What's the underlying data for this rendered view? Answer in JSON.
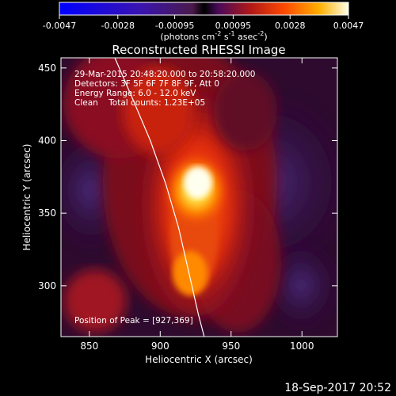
{
  "colorbar": {
    "ticks": [
      "-0.0047",
      "-0.0028",
      "-0.00095",
      "0.00095",
      "0.0028",
      "0.0047"
    ],
    "units_prefix": "(photons cm",
    "units_exp1": "-2",
    "units_mid": " s",
    "units_exp2": "-1",
    "units_mid2": " asec",
    "units_exp3": "-2",
    "units_suffix": ")",
    "range": [
      -0.0047,
      0.0047
    ]
  },
  "chart_data": {
    "type": "heatmap",
    "title": "Reconstructed RHESSI Image",
    "xlabel": "Heliocentric X (arcsec)",
    "ylabel": "Heliocentric Y (arcsec)",
    "xlim": [
      830,
      1025
    ],
    "ylim": [
      265,
      457
    ],
    "xticks": [
      850,
      900,
      950,
      1000
    ],
    "yticks": [
      300,
      350,
      400,
      450
    ],
    "annotations": [
      "29-Mar-2015 20:48:20.000 to 20:58:20.000",
      "Detectors: 3F 5F 6F 7F 8F 9F, Att 0",
      "Energy Range: 6.0 - 12.0 keV",
      "Clean    Total counts: 1.23E+05"
    ],
    "peak_label": "Position of Peak = [927,369]",
    "peak": [
      927,
      369
    ],
    "limb_curve": [
      [
        868,
        457
      ],
      [
        880,
        430
      ],
      [
        893,
        400
      ],
      [
        904,
        370
      ],
      [
        913,
        340
      ],
      [
        920,
        310
      ],
      [
        927,
        280
      ],
      [
        931,
        265
      ]
    ]
  },
  "footer": {
    "date": "18-Sep-2017 20:52"
  }
}
